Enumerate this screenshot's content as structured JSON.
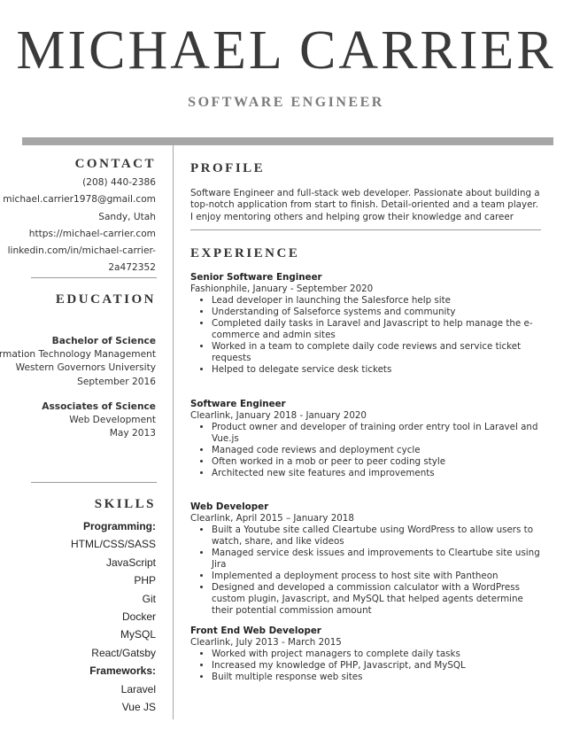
{
  "header": {
    "name": "MICHAEL CARRIER",
    "role": "SOFTWARE ENGINEER"
  },
  "contact": {
    "heading": "CONTACT",
    "phone": "(208) 440-2386",
    "email": "michael.carrier1978@gmail.com",
    "location": "Sandy, Utah",
    "website": "https://michael-carrier.com",
    "linkedin_line1": "linkedin.com/in/michael-carrier-",
    "linkedin_line2": "2a472352"
  },
  "education": {
    "heading": "EDUCATION",
    "degrees": [
      {
        "degree": "Bachelor of Science",
        "field": "Information Technology Management",
        "school": "Western Governors University",
        "date": "September 2016"
      },
      {
        "degree": "Associates of Science",
        "field": "Web Development",
        "date": "May 2013"
      }
    ]
  },
  "skills": {
    "heading": "SKILLS",
    "programming_label": "Programming:",
    "programming": [
      "HTML/CSS/SASS",
      "JavaScript",
      "PHP",
      "Git",
      "Docker",
      "MySQL",
      "React/Gatsby"
    ],
    "frameworks_label": "Frameworks:",
    "frameworks": [
      "Laravel",
      "Vue JS"
    ]
  },
  "profile": {
    "heading": "PROFILE",
    "text": "Software Engineer and full-stack web developer. Passionate about building a top-notch application from start to finish. Detail-oriented and a team player. I enjoy mentoring others and helping grow their knowledge and career"
  },
  "experience": {
    "heading": "EXPERIENCE",
    "jobs": [
      {
        "title": "Senior Software Engineer",
        "sub": "Fashionphile, January - September 2020",
        "bullets": [
          "Lead developer in launching the Salesforce help site",
          "Understanding of Salseforce systems and community",
          "Completed daily tasks in Laravel and Javascript to help manage the e-commerce and admin sites",
          "Worked in a team to complete daily code reviews and service ticket requests",
          "Helped to delegate service desk tickets"
        ]
      },
      {
        "title": "Software Engineer",
        "sub": "Clearlink, January 2018 - January 2020",
        "bullets": [
          "Product owner and developer of training order entry tool in Laravel and Vue.js",
          "Managed code reviews and deployment cycle",
          "Often worked in a mob or peer to peer coding style",
          "Architected new site features and improvements"
        ]
      },
      {
        "title": "Web Developer",
        "sub": "Clearlink, April 2015 – January 2018",
        "bullets": [
          "Built a Youtube site called Cleartube using WordPress to allow users to watch, share, and like videos",
          "Managed service desk issues and improvements to Cleartube site using Jira",
          "Implemented a deployment process to host site with Pantheon",
          "Designed and developed a commission calculator with a WordPress custom plugin, Javascript, and MySQL that helped agents determine their potential commission amount"
        ]
      },
      {
        "title": "Front End Web Developer",
        "sub": "Clearlink, July 2013 - March 2015",
        "bullets": [
          "Worked with project managers to complete daily tasks",
          "Increased my knowledge of PHP, Javascript, and MySQL",
          "Built multiple response web sites"
        ]
      }
    ]
  }
}
